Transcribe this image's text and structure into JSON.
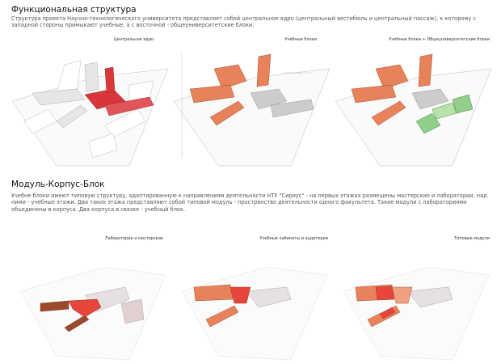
{
  "section1": {
    "title": "Функциональная структура",
    "text": " Структура проекта Научно-технологического университета представляет собой центральное ядро (центральный вестибюль и центральный пассаж), к которому с западной стороны примыкают учебные, а с восточной - общеуниверситетские блоки.",
    "panels": [
      {
        "title": "Центральное ядро"
      },
      {
        "title": "Учебные блоки"
      },
      {
        "title": "Учебные блоки + Общеуниверситетские блоки"
      }
    ]
  },
  "section2": {
    "title": "Модуль-Корпус-Блок",
    "text": "Учебне блоки имеют типовую структуру, адаптированную к направлениям деятельности НТУ \"Сириус\" - на первых этажах размещены мастерские и лаборатории, над ними - учебные этажи. Два таких этажа представляют собой типовой модуль - пространство деятельности одного факультета. Такие модули с лабораториями объединены в корпуса. Два корпуса в связке - учебный блок.",
    "panels": [
      {
        "title": "Лаборатории и мастерские"
      },
      {
        "title": "Учебные кабинеты и аудитории"
      },
      {
        "title": "Типовые модули"
      }
    ]
  },
  "colors": {
    "core_red": "#d9363b",
    "teaching_orange": "#e8825a",
    "university_green": "#8fcf8a",
    "lab_brown": "#9c4a2a",
    "lab_red": "#e8453c"
  }
}
